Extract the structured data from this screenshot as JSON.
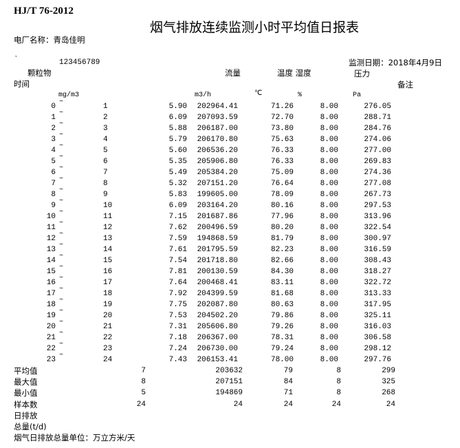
{
  "header": {
    "standard": "HJ/T 76-2012",
    "title": "烟气排放连续监测小时平均值日报表",
    "plant_label": "电厂名称：青岛佳明",
    "mark": "`",
    "code": "123456789",
    "date_label": "监测日期：2018年4月9日"
  },
  "columns": {
    "particulate": "颗粒物",
    "flow": "流量",
    "temp_humidity": "温度 湿度",
    "pressure": "压力",
    "time": "时间",
    "remark": "备注",
    "unit_particulate": "mg/m3",
    "unit_flow": "m3/h",
    "unit_temp": "℃",
    "unit_humidity": "%",
    "unit_pressure": "Pa"
  },
  "separator": "~",
  "rows": [
    [
      "0",
      "1",
      "5.90",
      "202964.41",
      "71.26",
      "8.00",
      "276.05"
    ],
    [
      "1",
      "2",
      "6.09",
      "207093.59",
      "72.70",
      "8.00",
      "288.71"
    ],
    [
      "2",
      "3",
      "5.88",
      "206187.00",
      "73.80",
      "8.00",
      "284.76"
    ],
    [
      "3",
      "4",
      "5.79",
      "206170.80",
      "75.63",
      "8.00",
      "274.06"
    ],
    [
      "4",
      "5",
      "5.60",
      "206536.20",
      "76.33",
      "8.00",
      "277.00"
    ],
    [
      "5",
      "6",
      "5.35",
      "205906.80",
      "76.33",
      "8.00",
      "269.83"
    ],
    [
      "6",
      "7",
      "5.49",
      "205384.20",
      "75.09",
      "8.00",
      "274.36"
    ],
    [
      "7",
      "8",
      "5.32",
      "207151.20",
      "76.64",
      "8.00",
      "277.08"
    ],
    [
      "8",
      "9",
      "5.83",
      "199605.00",
      "78.09",
      "8.00",
      "267.73"
    ],
    [
      "9",
      "10",
      "6.09",
      "203164.20",
      "80.16",
      "8.00",
      "297.53"
    ],
    [
      "10",
      "11",
      "7.15",
      "201687.86",
      "77.96",
      "8.00",
      "313.96"
    ],
    [
      "11",
      "12",
      "7.62",
      "200496.59",
      "80.20",
      "8.00",
      "322.54"
    ],
    [
      "12",
      "13",
      "7.59",
      "194868.59",
      "81.79",
      "8.00",
      "300.97"
    ],
    [
      "13",
      "14",
      "7.61",
      "201795.59",
      "82.23",
      "8.00",
      "316.59"
    ],
    [
      "14",
      "15",
      "7.54",
      "201718.80",
      "82.66",
      "8.00",
      "308.43"
    ],
    [
      "15",
      "16",
      "7.81",
      "200130.59",
      "84.30",
      "8.00",
      "318.27"
    ],
    [
      "16",
      "17",
      "7.64",
      "200468.41",
      "83.11",
      "8.00",
      "322.72"
    ],
    [
      "17",
      "18",
      "7.92",
      "204399.59",
      "81.68",
      "8.00",
      "313.33"
    ],
    [
      "18",
      "19",
      "7.75",
      "202087.80",
      "80.63",
      "8.00",
      "317.95"
    ],
    [
      "19",
      "20",
      "7.53",
      "204502.20",
      "79.86",
      "8.00",
      "325.11"
    ],
    [
      "20",
      "21",
      "7.31",
      "205606.80",
      "79.26",
      "8.00",
      "316.03"
    ],
    [
      "21",
      "22",
      "7.18",
      "206367.00",
      "78.31",
      "8.00",
      "306.58"
    ],
    [
      "22",
      "23",
      "7.24",
      "206730.00",
      "79.24",
      "8.00",
      "298.12"
    ],
    [
      "23",
      "24",
      "7.43",
      "206153.41",
      "78.00",
      "8.00",
      "297.76"
    ]
  ],
  "summary": [
    [
      "平均值",
      "7",
      "203632",
      "79",
      "8",
      "299"
    ],
    [
      "最大值",
      "8",
      "207151",
      "84",
      "8",
      "325"
    ],
    [
      "最小值",
      "5",
      "194869",
      "71",
      "8",
      "268"
    ],
    [
      "样本数",
      "24",
      "24",
      "24",
      "24",
      "24"
    ]
  ],
  "footer": {
    "daily_emission": "日排放",
    "total": "总量(t/d)",
    "unit_note": "烟气日排放总量单位：万立方米/天"
  }
}
